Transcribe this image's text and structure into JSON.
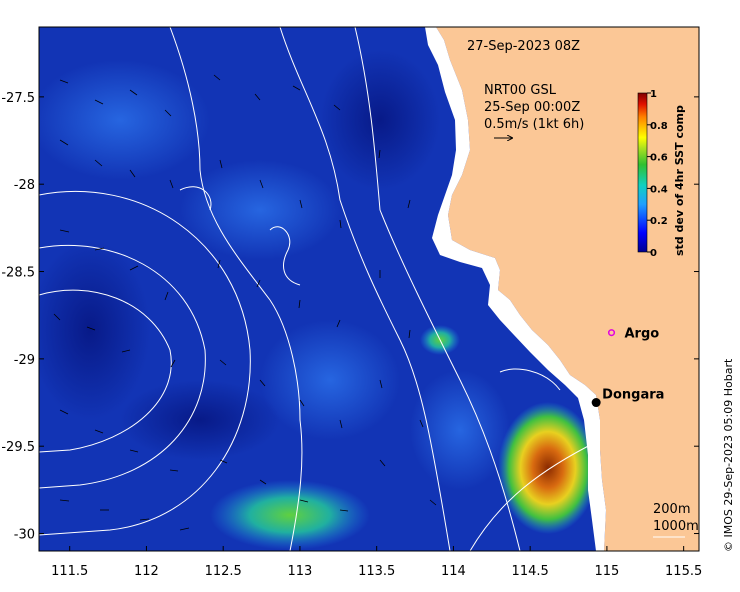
{
  "map": {
    "timestamp": "27-Sep-2023 08Z",
    "vector_info": {
      "line1": "NRT00 GSL",
      "line2": "25-Sep 00:00Z",
      "line3": "0.5m/s (1kt 6h)"
    },
    "x_ticks": [
      "111.5",
      "112",
      "112.5",
      "113",
      "113.5",
      "114",
      "114.5",
      "115",
      "115.5"
    ],
    "x_tick_values": [
      111.5,
      112,
      112.5,
      113,
      113.5,
      114,
      114.5,
      115,
      115.5
    ],
    "y_ticks": [
      "-27.5",
      "-28",
      "-28.5",
      "-29",
      "-29.5",
      "-30"
    ],
    "y_tick_values": [
      -27.5,
      -28,
      -28.5,
      -29,
      -29.5,
      -30
    ],
    "lon_range": [
      111.3,
      115.6
    ],
    "lat_range": [
      -30.1,
      -27.1
    ],
    "places": [
      {
        "name": "Argo",
        "lon": 115.03,
        "lat": -28.85,
        "marker": "magenta-circle"
      },
      {
        "name": "Dongara",
        "lon": 114.93,
        "lat": -29.25,
        "marker": "black-dot"
      }
    ],
    "depth_legend": {
      "a": "200m",
      "b": "1000m"
    },
    "colorbar": {
      "label": "std dev of 4hr SST comp",
      "ticks": [
        "0",
        "0.2",
        "0.4",
        "0.6",
        "0.8",
        "1"
      ],
      "tick_values": [
        0,
        0.2,
        0.4,
        0.6,
        0.8,
        1
      ]
    },
    "credit": "© IMOS 29-Sep-2023 05:09 Hobart",
    "colors": {
      "land": "#fbc796",
      "ocean_low": "#0a1f9a",
      "ocean_mid": "#1f5ee0",
      "high": "#8a1e00",
      "contour": "#ffffff"
    }
  }
}
